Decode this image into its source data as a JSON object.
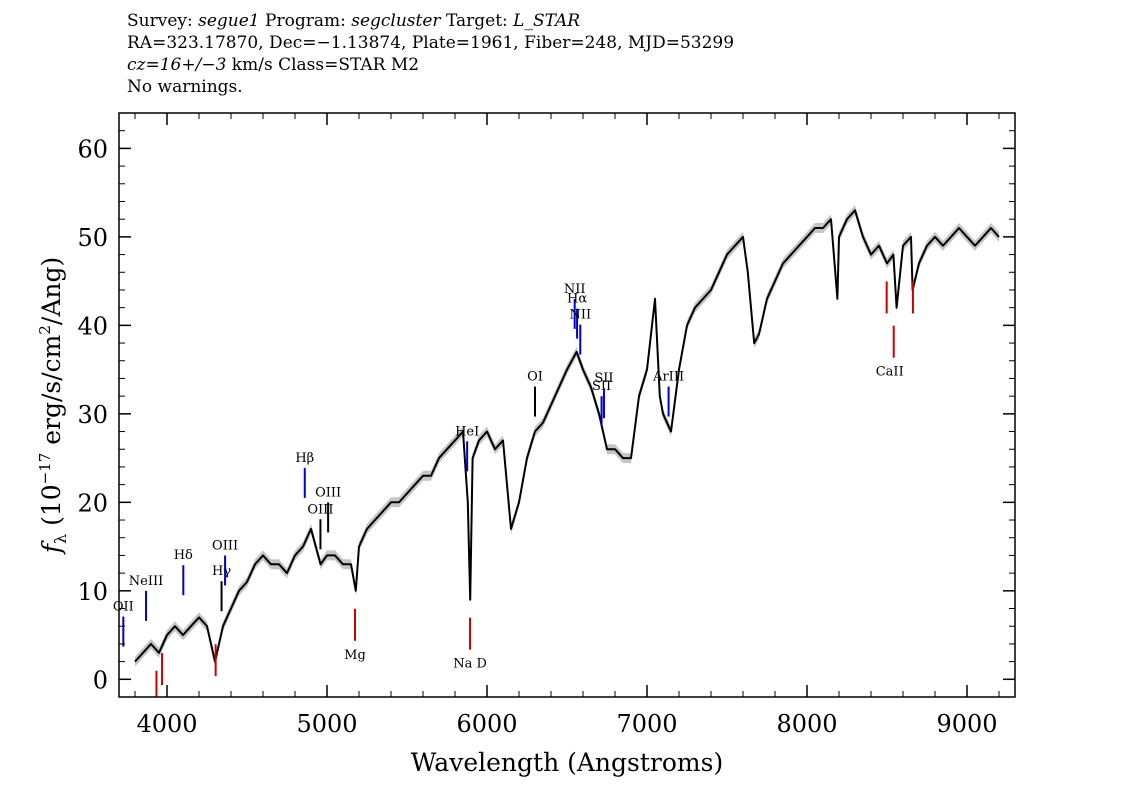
{
  "header": {
    "survey_label": "Survey: ",
    "survey": "segue1",
    "program_label": " Program: ",
    "program": "segcluster",
    "target_label": " Target: ",
    "target": "L_STAR",
    "line2": "RA=323.17870, Dec=−1.13874, Plate=1961, Fiber=248, MJD=53299",
    "cz_value": "cz=16+/−3",
    "cz_rest": " km/s Class=STAR M2",
    "line4": "No warnings."
  },
  "chart_data": {
    "type": "line",
    "xlabel": "Wavelength (Angstroms)",
    "ylabel": "f_λ (10^-17 erg/s/cm^2/Ang)",
    "xlim": [
      3700,
      9300
    ],
    "ylim": [
      -2,
      64
    ],
    "xticks": [
      4000,
      5000,
      6000,
      7000,
      8000,
      9000
    ],
    "yticks": [
      0,
      10,
      20,
      30,
      40,
      50,
      60
    ],
    "series": [
      {
        "color": "#000000",
        "error_color": "#bbbbbb",
        "x": [
          3800,
          3850,
          3900,
          3950,
          4000,
          4050,
          4100,
          4150,
          4200,
          4250,
          4300,
          4350,
          4400,
          4450,
          4500,
          4550,
          4600,
          4650,
          4700,
          4750,
          4800,
          4850,
          4900,
          4930,
          4960,
          5000,
          5050,
          5100,
          5150,
          5180,
          5200,
          5250,
          5300,
          5350,
          5400,
          5450,
          5500,
          5550,
          5600,
          5650,
          5700,
          5750,
          5800,
          5850,
          5880,
          5895,
          5910,
          5950,
          6000,
          6050,
          6100,
          6150,
          6200,
          6250,
          6300,
          6350,
          6400,
          6450,
          6500,
          6560,
          6600,
          6650,
          6700,
          6750,
          6800,
          6850,
          6900,
          6950,
          7000,
          7050,
          7080,
          7100,
          7150,
          7200,
          7250,
          7300,
          7350,
          7400,
          7450,
          7500,
          7550,
          7600,
          7630,
          7670,
          7700,
          7750,
          7800,
          7850,
          7900,
          7950,
          8000,
          8050,
          8100,
          8150,
          8190,
          8200,
          8250,
          8300,
          8350,
          8400,
          8450,
          8500,
          8540,
          8560,
          8600,
          8650,
          8660,
          8700,
          8750,
          8800,
          8850,
          8900,
          8950,
          9000,
          9050,
          9100,
          9150,
          9200
        ],
        "y": [
          2,
          3,
          4,
          3,
          5,
          6,
          5,
          6,
          7,
          6,
          2,
          6,
          8,
          10,
          11,
          13,
          14,
          13,
          13,
          12,
          14,
          15,
          17,
          15,
          13,
          14,
          14,
          13,
          13,
          10,
          15,
          17,
          18,
          19,
          20,
          20,
          21,
          22,
          23,
          23,
          25,
          26,
          27,
          28,
          20,
          9,
          25,
          27,
          28,
          26,
          27,
          17,
          20,
          25,
          28,
          29,
          31,
          33,
          35,
          37,
          35,
          33,
          30,
          26,
          26,
          25,
          25,
          32,
          35,
          43,
          32,
          30,
          28,
          35,
          40,
          42,
          43,
          44,
          46,
          48,
          49,
          50,
          46,
          38,
          39,
          43,
          45,
          47,
          48,
          49,
          50,
          51,
          51,
          52,
          43,
          50,
          52,
          53,
          50,
          48,
          49,
          47,
          48,
          42,
          49,
          50,
          44,
          47,
          49,
          50,
          49,
          50,
          51,
          50,
          49,
          50,
          51,
          50
        ]
      }
    ],
    "emission_lines": [
      {
        "label": "OII",
        "x": 3727
      },
      {
        "label": "NeIII",
        "x": 3869
      },
      {
        "label": "Hδ",
        "x": 4102
      },
      {
        "label": "Hγ",
        "x": 4341
      },
      {
        "label": "OIII",
        "x": 4363
      },
      {
        "label": "Hβ",
        "x": 4861
      },
      {
        "label": "OIII",
        "x": 4959
      },
      {
        "label": "OIII",
        "x": 5007
      },
      {
        "label": "HeI",
        "x": 5876
      },
      {
        "label": "OI",
        "x": 6300
      },
      {
        "label": "NII",
        "x": 6548
      },
      {
        "label": "Hα",
        "x": 6563
      },
      {
        "label": "NII",
        "x": 6583
      },
      {
        "label": "SII",
        "x": 6716
      },
      {
        "label": "SII",
        "x": 6731
      },
      {
        "label": "ArIII",
        "x": 7135
      }
    ],
    "absorption_lines": [
      {
        "label": "",
        "x": 3934
      },
      {
        "label": "",
        "x": 3969
      },
      {
        "label": "",
        "x": 4304
      },
      {
        "label": "Mg",
        "x": 5175
      },
      {
        "label": "Na D",
        "x": 5894
      },
      {
        "label": "CaII",
        "x": 8498
      },
      {
        "label": "CaII",
        "x": 8542
      },
      {
        "label": "",
        "x": 8662
      }
    ]
  }
}
